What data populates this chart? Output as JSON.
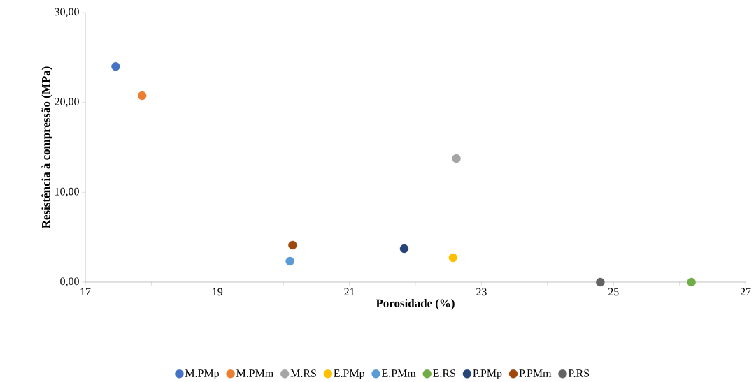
{
  "chart_data": {
    "type": "scatter",
    "xlabel": "Porosidade (%)",
    "ylabel": "Resistência à compressão (MPa)",
    "xlim": [
      17,
      27
    ],
    "ylim": [
      0,
      30
    ],
    "xticks": [
      17,
      {
        "value": 18,
        "label": null
      },
      19,
      {
        "value": 20,
        "label": null
      },
      21,
      {
        "value": 22,
        "label": null
      },
      23,
      {
        "value": 24,
        "label": null
      },
      25,
      {
        "value": 26,
        "label": null
      },
      27
    ],
    "yticks": [
      {
        "value": 0,
        "label": "0,00"
      },
      {
        "value": 10,
        "label": "10,00"
      },
      {
        "value": 20,
        "label": "20,00"
      },
      {
        "value": 30,
        "label": "30,00"
      }
    ],
    "grid": false,
    "legend": "bottom",
    "series": [
      {
        "name": "M.PMp",
        "color": "#4472c4",
        "x": [
          17.46
        ],
        "values": [
          24.0
        ]
      },
      {
        "name": "M.PMm",
        "color": "#ed7d31",
        "x": [
          17.86
        ],
        "values": [
          20.75
        ]
      },
      {
        "name": "M.RS",
        "color": "#a5a5a5",
        "x": [
          22.62
        ],
        "values": [
          13.75
        ]
      },
      {
        "name": "E.PMp",
        "color": "#ffc000",
        "x": [
          22.57
        ],
        "values": [
          2.72
        ]
      },
      {
        "name": "E.PMm",
        "color": "#5b9bd5",
        "x": [
          20.1
        ],
        "values": [
          2.33
        ]
      },
      {
        "name": "E.RS",
        "color": "#70ad47",
        "x": [
          26.18
        ],
        "values": [
          0
        ]
      },
      {
        "name": "P.PMp",
        "color": "#264478",
        "x": [
          21.83
        ],
        "values": [
          3.73
        ]
      },
      {
        "name": "P.PMm",
        "color": "#9e480e",
        "x": [
          20.14
        ],
        "values": [
          4.12
        ]
      },
      {
        "name": "P.RS",
        "color": "#636363",
        "x": [
          24.8
        ],
        "values": [
          0
        ]
      }
    ]
  }
}
